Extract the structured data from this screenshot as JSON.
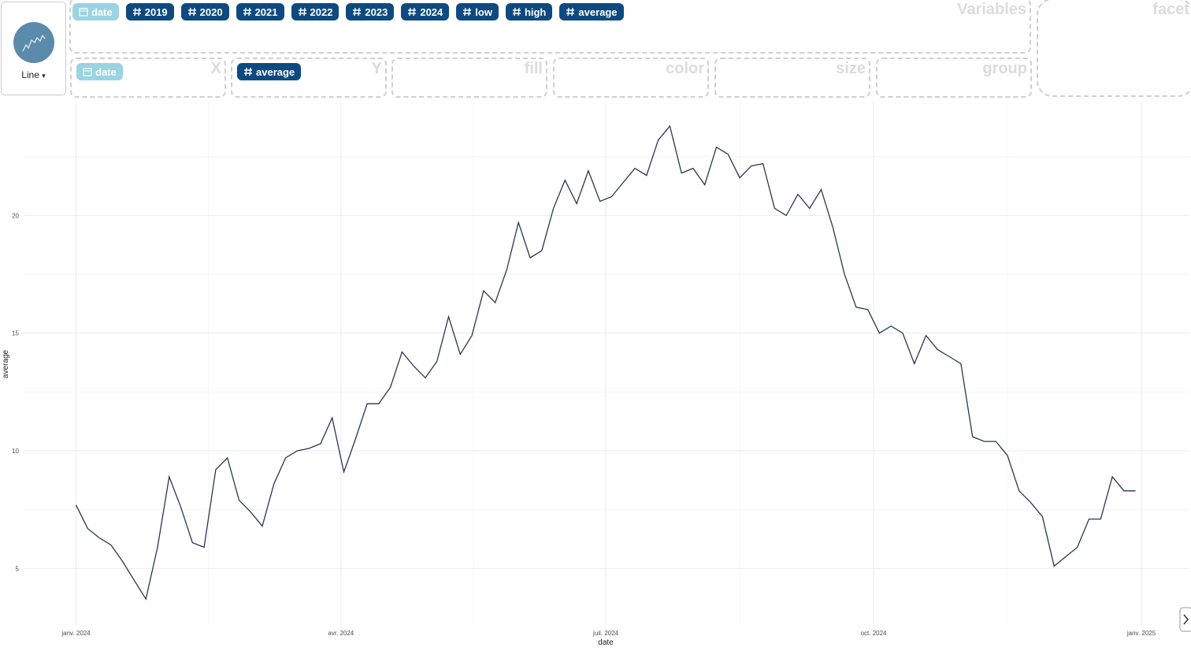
{
  "ui": {
    "chart_type": "Line",
    "variables": [
      "date",
      "2019",
      "2020",
      "2021",
      "2022",
      "2023",
      "2024",
      "low",
      "high",
      "average"
    ],
    "variables_label": "Variables",
    "facet_label": "facet",
    "zones": [
      {
        "label": "X",
        "vars": [
          "date"
        ]
      },
      {
        "label": "Y",
        "vars": [
          "average"
        ]
      },
      {
        "label": "fill",
        "vars": []
      },
      {
        "label": "color",
        "vars": []
      },
      {
        "label": "size",
        "vars": []
      },
      {
        "label": "group",
        "vars": []
      }
    ]
  },
  "chart_data": {
    "type": "line",
    "x_label": "date",
    "y_label": "average",
    "color": "#2b3553",
    "grid": true,
    "x": [
      0,
      4,
      8,
      12,
      16,
      20,
      24,
      28,
      32,
      36,
      40,
      44,
      48,
      52,
      56,
      60,
      64,
      68,
      72,
      76,
      80,
      84,
      88,
      92,
      96,
      100,
      104,
      108,
      112,
      116,
      120,
      124,
      128,
      132,
      136,
      140,
      144,
      148,
      152,
      156,
      160,
      164,
      168,
      172,
      176,
      180,
      184,
      188,
      192,
      196,
      200,
      204,
      208,
      212,
      216,
      220,
      224,
      228,
      232,
      236,
      240,
      244,
      248,
      252,
      256,
      260,
      264,
      268,
      272,
      276,
      280,
      284,
      288,
      292,
      296,
      300,
      304,
      308,
      312,
      316,
      320,
      324,
      328,
      332,
      336,
      340,
      344,
      348,
      352,
      356,
      360,
      364
    ],
    "values": [
      7.7,
      6.7,
      6.3,
      6.0,
      5.3,
      4.5,
      3.7,
      5.9,
      8.9,
      7.6,
      6.1,
      5.9,
      9.2,
      9.7,
      7.9,
      7.4,
      6.8,
      8.6,
      9.7,
      10.0,
      10.1,
      10.3,
      11.4,
      9.1,
      10.5,
      12.0,
      12.0,
      12.7,
      14.2,
      13.6,
      13.1,
      13.8,
      15.7,
      14.1,
      14.9,
      16.8,
      16.3,
      17.7,
      19.7,
      18.2,
      18.5,
      20.3,
      21.5,
      20.5,
      21.9,
      20.6,
      20.8,
      21.4,
      22.0,
      21.7,
      23.2,
      23.8,
      21.8,
      22.0,
      21.3,
      22.9,
      22.6,
      21.6,
      22.1,
      22.2,
      20.3,
      20.0,
      20.9,
      20.3,
      21.1,
      19.5,
      17.5,
      16.1,
      16.0,
      15.0,
      15.3,
      15.0,
      13.7,
      14.9,
      14.3,
      14.0,
      13.7,
      10.6,
      10.4,
      10.4,
      9.8,
      8.3,
      7.8,
      7.2,
      5.1,
      5.5,
      5.9,
      7.1,
      7.1,
      8.9,
      8.3,
      8.3
    ],
    "xlim": [
      -18,
      382.5
    ],
    "xticks": [
      {
        "value": 0,
        "label": "janv. 2024"
      },
      {
        "value": 91,
        "label": "avr. 2024"
      },
      {
        "value": 182,
        "label": "juil. 2024"
      },
      {
        "value": 274,
        "label": "oct. 2024"
      },
      {
        "value": 366,
        "label": "janv. 2025"
      }
    ],
    "xminor": [
      45.5,
      136.5,
      228,
      320
    ],
    "ylim": [
      2.6,
      24.8
    ],
    "yticks": [
      5,
      10,
      15,
      20
    ],
    "yminor": [
      7.5,
      12.5,
      17.5,
      22.5
    ]
  }
}
